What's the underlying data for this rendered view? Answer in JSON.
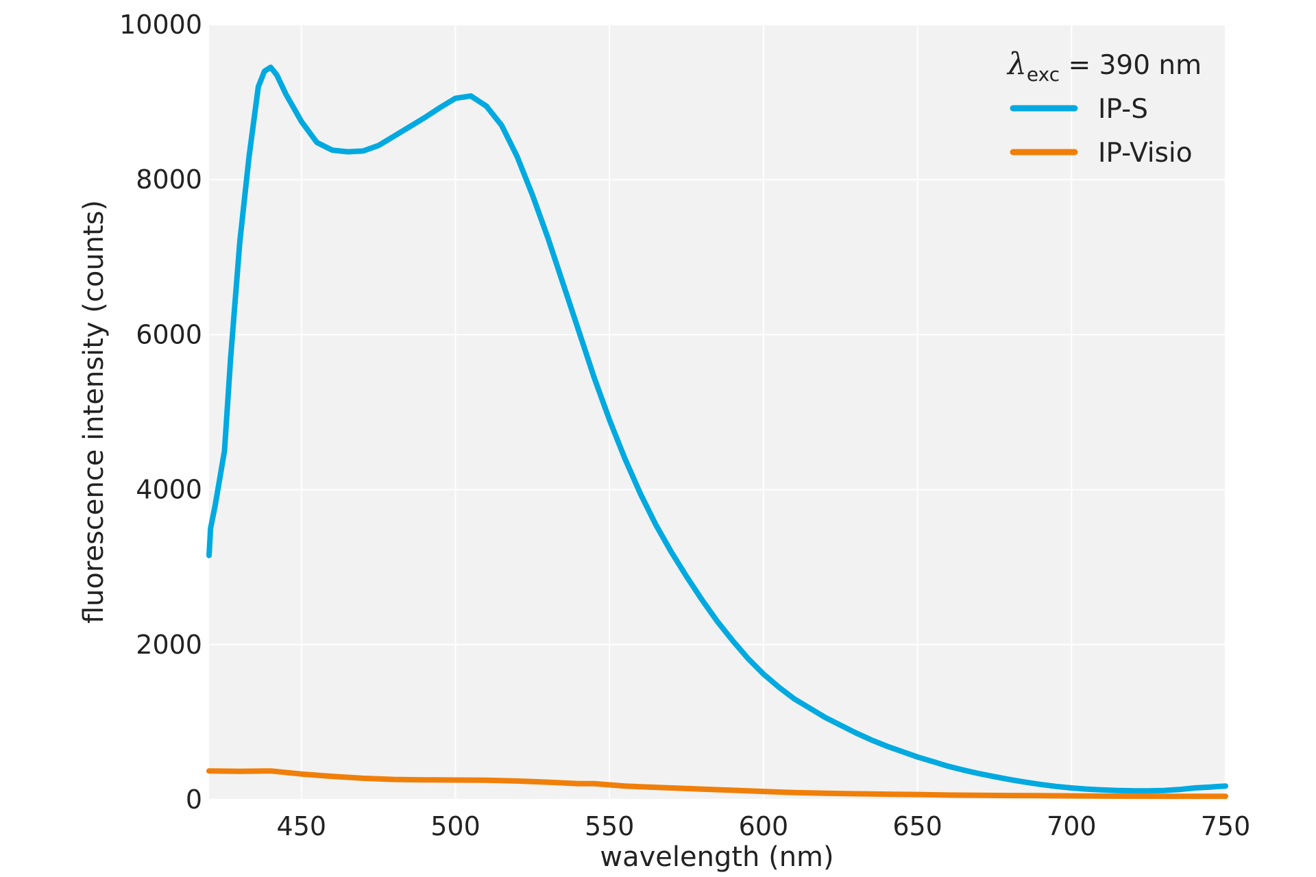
{
  "chart_data": {
    "type": "line",
    "xlabel": "wavelength (nm)",
    "ylabel": "fluorescence intensity (counts)",
    "xlim": [
      420,
      750
    ],
    "ylim": [
      0,
      10000
    ],
    "xticks": [
      450,
      500,
      550,
      600,
      650,
      700,
      750
    ],
    "yticks": [
      0,
      2000,
      4000,
      6000,
      8000,
      10000
    ],
    "grid": true,
    "legend": {
      "placement": "top-right",
      "title_symbol": "λ",
      "title_subscript": "exc",
      "title_value": " = 390 nm"
    },
    "series": [
      {
        "name": "IP-S",
        "color": "#00A9E0",
        "points": [
          [
            420,
            3150
          ],
          [
            420.5,
            3500
          ],
          [
            422,
            3800
          ],
          [
            425,
            4500
          ],
          [
            427,
            5700
          ],
          [
            430,
            7200
          ],
          [
            433,
            8300
          ],
          [
            436,
            9200
          ],
          [
            438,
            9400
          ],
          [
            440,
            9450
          ],
          [
            442,
            9350
          ],
          [
            445,
            9100
          ],
          [
            450,
            8750
          ],
          [
            455,
            8480
          ],
          [
            460,
            8380
          ],
          [
            465,
            8360
          ],
          [
            470,
            8370
          ],
          [
            475,
            8440
          ],
          [
            480,
            8560
          ],
          [
            485,
            8680
          ],
          [
            490,
            8800
          ],
          [
            495,
            8930
          ],
          [
            500,
            9050
          ],
          [
            505,
            9080
          ],
          [
            510,
            8950
          ],
          [
            515,
            8700
          ],
          [
            520,
            8300
          ],
          [
            525,
            7800
          ],
          [
            530,
            7250
          ],
          [
            535,
            6650
          ],
          [
            540,
            6050
          ],
          [
            545,
            5450
          ],
          [
            550,
            4900
          ],
          [
            555,
            4400
          ],
          [
            560,
            3950
          ],
          [
            565,
            3550
          ],
          [
            570,
            3200
          ],
          [
            575,
            2880
          ],
          [
            580,
            2580
          ],
          [
            585,
            2300
          ],
          [
            590,
            2050
          ],
          [
            595,
            1820
          ],
          [
            600,
            1620
          ],
          [
            605,
            1450
          ],
          [
            610,
            1300
          ],
          [
            615,
            1180
          ],
          [
            620,
            1060
          ],
          [
            625,
            960
          ],
          [
            630,
            860
          ],
          [
            635,
            770
          ],
          [
            640,
            690
          ],
          [
            645,
            620
          ],
          [
            650,
            550
          ],
          [
            655,
            490
          ],
          [
            660,
            430
          ],
          [
            665,
            380
          ],
          [
            670,
            335
          ],
          [
            675,
            295
          ],
          [
            680,
            258
          ],
          [
            685,
            225
          ],
          [
            690,
            195
          ],
          [
            695,
            170
          ],
          [
            700,
            150
          ],
          [
            705,
            135
          ],
          [
            710,
            125
          ],
          [
            715,
            118
          ],
          [
            720,
            113
          ],
          [
            725,
            112
          ],
          [
            730,
            118
          ],
          [
            735,
            130
          ],
          [
            740,
            150
          ],
          [
            745,
            162
          ],
          [
            750,
            175
          ]
        ]
      },
      {
        "name": "IP-Visio",
        "color": "#F07F09",
        "points": [
          [
            420,
            370
          ],
          [
            430,
            365
          ],
          [
            440,
            370
          ],
          [
            450,
            330
          ],
          [
            460,
            300
          ],
          [
            470,
            275
          ],
          [
            480,
            260
          ],
          [
            490,
            255
          ],
          [
            500,
            252
          ],
          [
            510,
            250
          ],
          [
            520,
            240
          ],
          [
            530,
            225
          ],
          [
            540,
            205
          ],
          [
            545,
            205
          ],
          [
            550,
            190
          ],
          [
            555,
            175
          ],
          [
            560,
            165
          ],
          [
            570,
            150
          ],
          [
            580,
            135
          ],
          [
            590,
            120
          ],
          [
            600,
            105
          ],
          [
            610,
            90
          ],
          [
            620,
            82
          ],
          [
            630,
            75
          ],
          [
            640,
            70
          ],
          [
            650,
            65
          ],
          [
            660,
            58
          ],
          [
            670,
            55
          ],
          [
            680,
            52
          ],
          [
            690,
            50
          ],
          [
            700,
            48
          ],
          [
            710,
            45
          ],
          [
            720,
            43
          ],
          [
            730,
            42
          ],
          [
            740,
            42
          ],
          [
            750,
            42
          ]
        ]
      }
    ]
  }
}
